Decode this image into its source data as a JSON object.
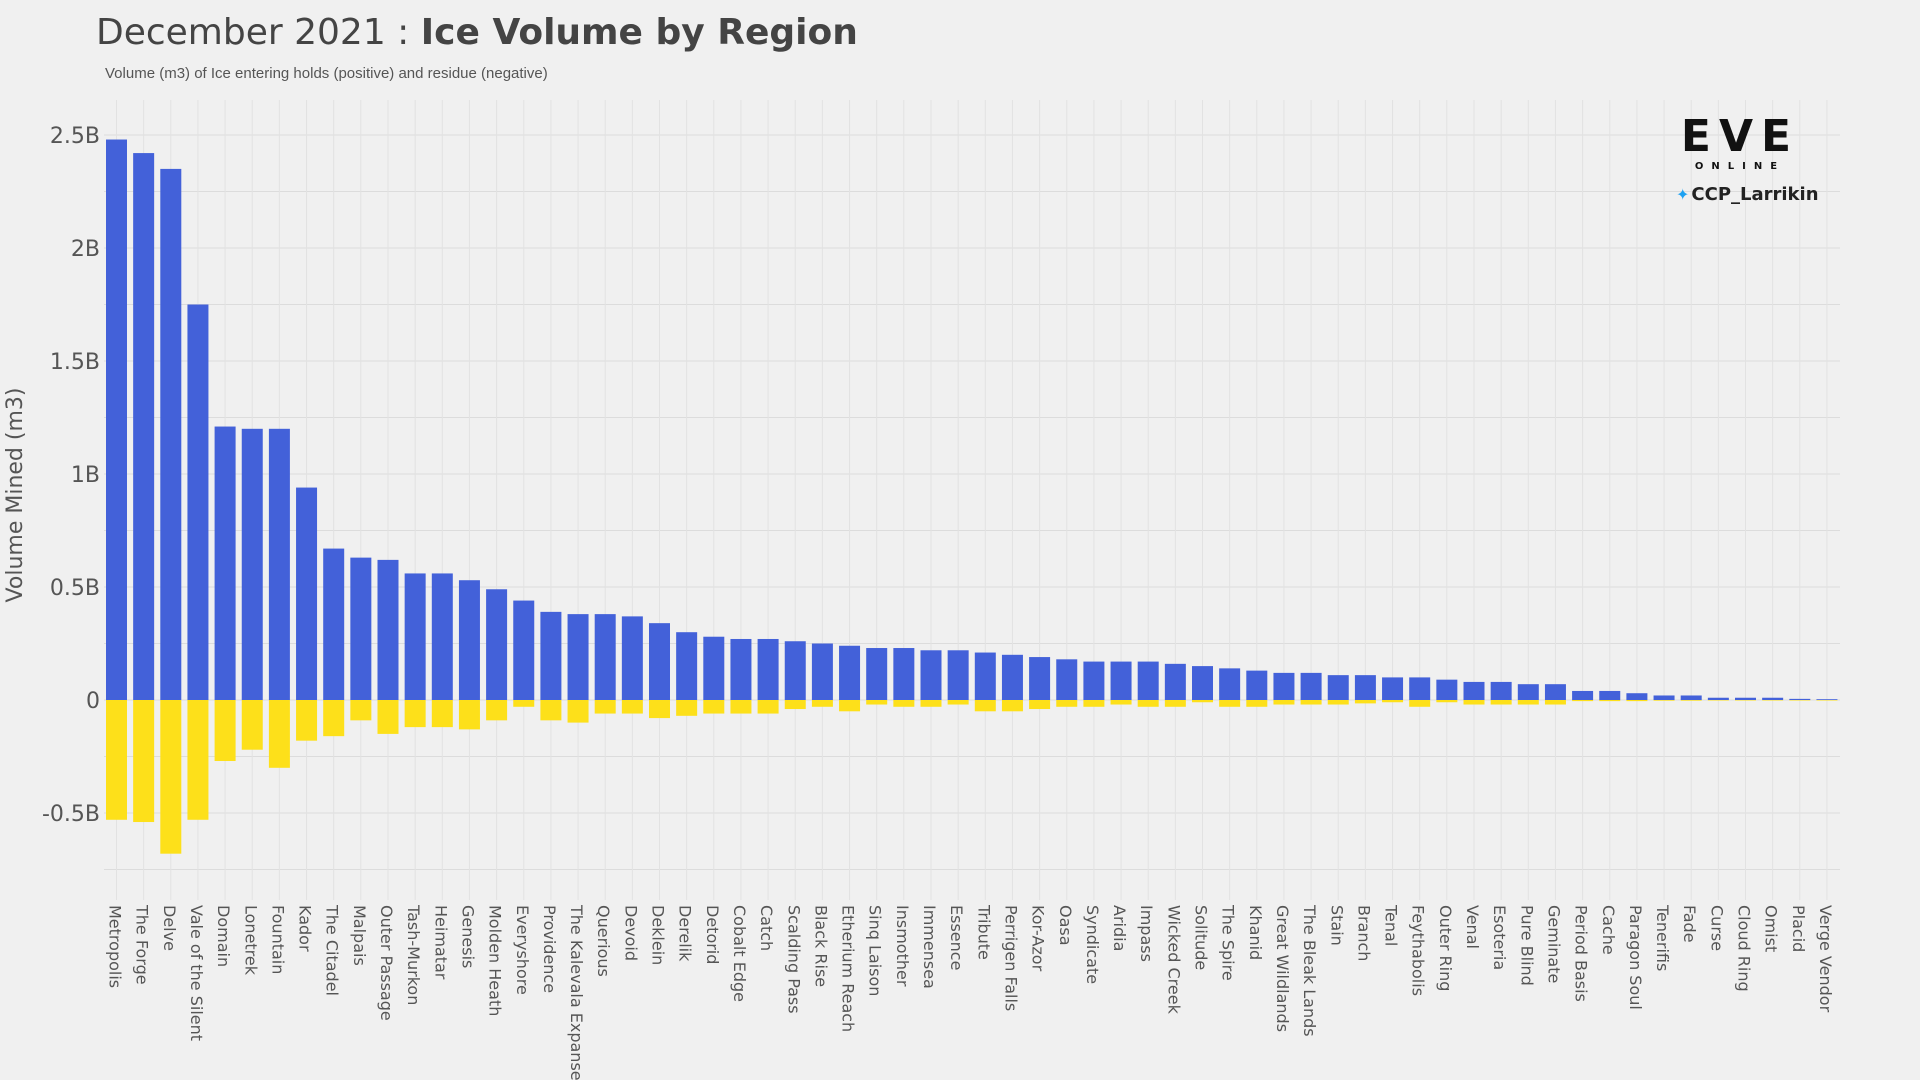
{
  "header": {
    "title_prefix": "December 2021 : ",
    "title_main": "Ice Volume by Region",
    "subtitle": "Volume (m3) of Ice entering holds (positive) and residue (negative)"
  },
  "branding": {
    "logo_text": "EVE",
    "logo_subtext": "ONLINE",
    "icon": "twitter-icon",
    "handle": "CCP_Larrikin"
  },
  "colors": {
    "positive": "#4361d9",
    "negative": "#fde01a"
  },
  "chart_data": {
    "type": "bar",
    "ylabel": "Volume Mined (m3)",
    "ylim": [
      -0.9,
      2.65
    ],
    "yticks": [
      2.5,
      2,
      1.5,
      1,
      0.5,
      0,
      -0.5
    ],
    "ytick_labels": [
      "2.5B",
      "2B",
      "1.5B",
      "1B",
      "0.5B",
      "0",
      "-0.5B"
    ],
    "grid": true,
    "categories": [
      "Metropolis",
      "The Forge",
      "Delve",
      "Vale of the Silent",
      "Domain",
      "Lonetrek",
      "Fountain",
      "Kador",
      "The Citadel",
      "Malpais",
      "Outer Passage",
      "Tash-Murkon",
      "Heimatar",
      "Genesis",
      "Molden Heath",
      "Everyshore",
      "Providence",
      "The Kalevala Expanse",
      "Querious",
      "Devoid",
      "Deklein",
      "Derelik",
      "Detorid",
      "Cobalt Edge",
      "Catch",
      "Scalding Pass",
      "Black Rise",
      "Etherium Reach",
      "Sinq Laison",
      "Insmother",
      "Immensea",
      "Essence",
      "Tribute",
      "Perrigen Falls",
      "Kor-Azor",
      "Oasa",
      "Syndicate",
      "Aridia",
      "Impass",
      "Wicked Creek",
      "Solitude",
      "The Spire",
      "Khanid",
      "Great Wildlands",
      "The Bleak Lands",
      "Stain",
      "Branch",
      "Tenal",
      "Feythabolis",
      "Outer Ring",
      "Venal",
      "Esoteria",
      "Pure Blind",
      "Geminate",
      "Period Basis",
      "Cache",
      "Paragon Soul",
      "Tenerifis",
      "Fade",
      "Curse",
      "Cloud Ring",
      "Omist",
      "Placid",
      "Verge Vendor"
    ],
    "series": [
      {
        "values": [
          2.48,
          2.42,
          2.35,
          1.75,
          1.21,
          1.2,
          1.2,
          0.94,
          0.67,
          0.63,
          0.62,
          0.56,
          0.56,
          0.53,
          0.49,
          0.44,
          0.39,
          0.38,
          0.38,
          0.37,
          0.34,
          0.3,
          0.28,
          0.27,
          0.27,
          0.26,
          0.25,
          0.24,
          0.23,
          0.23,
          0.22,
          0.22,
          0.21,
          0.2,
          0.19,
          0.18,
          0.17,
          0.17,
          0.17,
          0.16,
          0.15,
          0.14,
          0.13,
          0.12,
          0.12,
          0.11,
          0.11,
          0.1,
          0.1,
          0.09,
          0.08,
          0.08,
          0.07,
          0.07,
          0.04,
          0.04,
          0.03,
          0.02,
          0.02,
          0.01,
          0.01,
          0.01,
          0.005,
          0.003
        ]
      },
      {
        "values": [
          -0.53,
          -0.54,
          -0.68,
          -0.53,
          -0.27,
          -0.22,
          -0.3,
          -0.18,
          -0.16,
          -0.09,
          -0.15,
          -0.12,
          -0.12,
          -0.13,
          -0.09,
          -0.03,
          -0.09,
          -0.1,
          -0.06,
          -0.06,
          -0.08,
          -0.07,
          -0.06,
          -0.06,
          -0.06,
          -0.04,
          -0.03,
          -0.05,
          -0.02,
          -0.03,
          -0.03,
          -0.02,
          -0.05,
          -0.05,
          -0.04,
          -0.03,
          -0.03,
          -0.02,
          -0.03,
          -0.03,
          -0.01,
          -0.03,
          -0.03,
          -0.02,
          -0.02,
          -0.02,
          -0.015,
          -0.01,
          -0.03,
          -0.01,
          -0.02,
          -0.02,
          -0.02,
          -0.02,
          -0.005,
          -0.005,
          -0.005,
          -0.003,
          -0.003,
          -0.002,
          -0.002,
          -0.002,
          -0.001,
          -0.001
        ]
      }
    ]
  }
}
